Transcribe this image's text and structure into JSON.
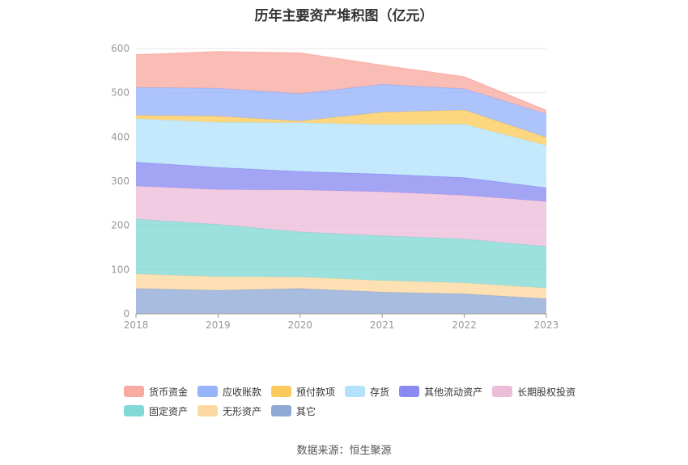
{
  "chart_data": {
    "type": "area",
    "stacked": true,
    "title": "历年主要资产堆积图（亿元）",
    "x": [
      "2018",
      "2019",
      "2020",
      "2021",
      "2022",
      "2023"
    ],
    "ylim": [
      0,
      600
    ],
    "yticks": [
      0,
      100,
      200,
      300,
      400,
      500,
      600
    ],
    "grid": true,
    "legend_position": "bottom",
    "series": [
      {
        "name": "其它",
        "color": "#8fa9d6",
        "values": [
          57,
          53,
          57,
          49,
          45,
          34
        ]
      },
      {
        "name": "无形资产",
        "color": "#fcd9a0",
        "values": [
          33,
          31,
          26,
          26,
          25,
          24
        ]
      },
      {
        "name": "固定资产",
        "color": "#82d9d6",
        "values": [
          124,
          118,
          102,
          101,
          99,
          94
        ]
      },
      {
        "name": "长期股权投资",
        "color": "#ecbdd9",
        "values": [
          75,
          79,
          95,
          100,
          99,
          102
        ]
      },
      {
        "name": "其他流动资产",
        "color": "#8a8af2",
        "values": [
          54,
          50,
          42,
          40,
          40,
          31
        ]
      },
      {
        "name": "存货",
        "color": "#b3e3fb",
        "values": [
          98,
          102,
          110,
          112,
          121,
          96
        ]
      },
      {
        "name": "预付款项",
        "color": "#fcca5c",
        "values": [
          8,
          14,
          4,
          28,
          32,
          18
        ]
      },
      {
        "name": "应收账款",
        "color": "#96b2fb",
        "values": [
          63,
          63,
          62,
          63,
          48,
          53
        ]
      },
      {
        "name": "货币资金",
        "color": "#f9aba2",
        "values": [
          74,
          83,
          92,
          43,
          27,
          8
        ]
      }
    ],
    "legend_rows": [
      [
        "货币资金",
        "应收账款",
        "预付款项",
        "存货",
        "其他流动资产",
        "长期股权投资"
      ],
      [
        "固定资产",
        "无形资产",
        "其它"
      ]
    ]
  },
  "source": "数据来源：恒生聚源"
}
